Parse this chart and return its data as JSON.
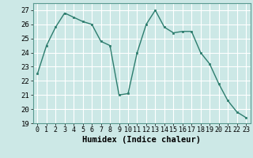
{
  "x": [
    0,
    1,
    2,
    3,
    4,
    5,
    6,
    7,
    8,
    9,
    10,
    11,
    12,
    13,
    14,
    15,
    16,
    17,
    18,
    19,
    20,
    21,
    22,
    23
  ],
  "y": [
    22.5,
    24.5,
    25.8,
    26.8,
    26.5,
    26.2,
    26.0,
    24.8,
    24.5,
    21.0,
    21.1,
    24.0,
    26.0,
    27.0,
    25.8,
    25.4,
    25.5,
    25.5,
    24.0,
    23.2,
    21.8,
    20.6,
    19.8,
    19.4
  ],
  "xlabel": "Humidex (Indice chaleur)",
  "ylim": [
    19,
    27.5
  ],
  "yticks": [
    19,
    20,
    21,
    22,
    23,
    24,
    25,
    26,
    27
  ],
  "xticks": [
    0,
    1,
    2,
    3,
    4,
    5,
    6,
    7,
    8,
    9,
    10,
    11,
    12,
    13,
    14,
    15,
    16,
    17,
    18,
    19,
    20,
    21,
    22,
    23
  ],
  "line_color": "#2d7d6e",
  "marker_color": "#2d7d6e",
  "bg_color": "#cce8e6",
  "grid_color": "#ffffff",
  "xlabel_fontsize": 7.5,
  "tick_fontsize": 6.0,
  "ytick_fontsize": 6.5
}
